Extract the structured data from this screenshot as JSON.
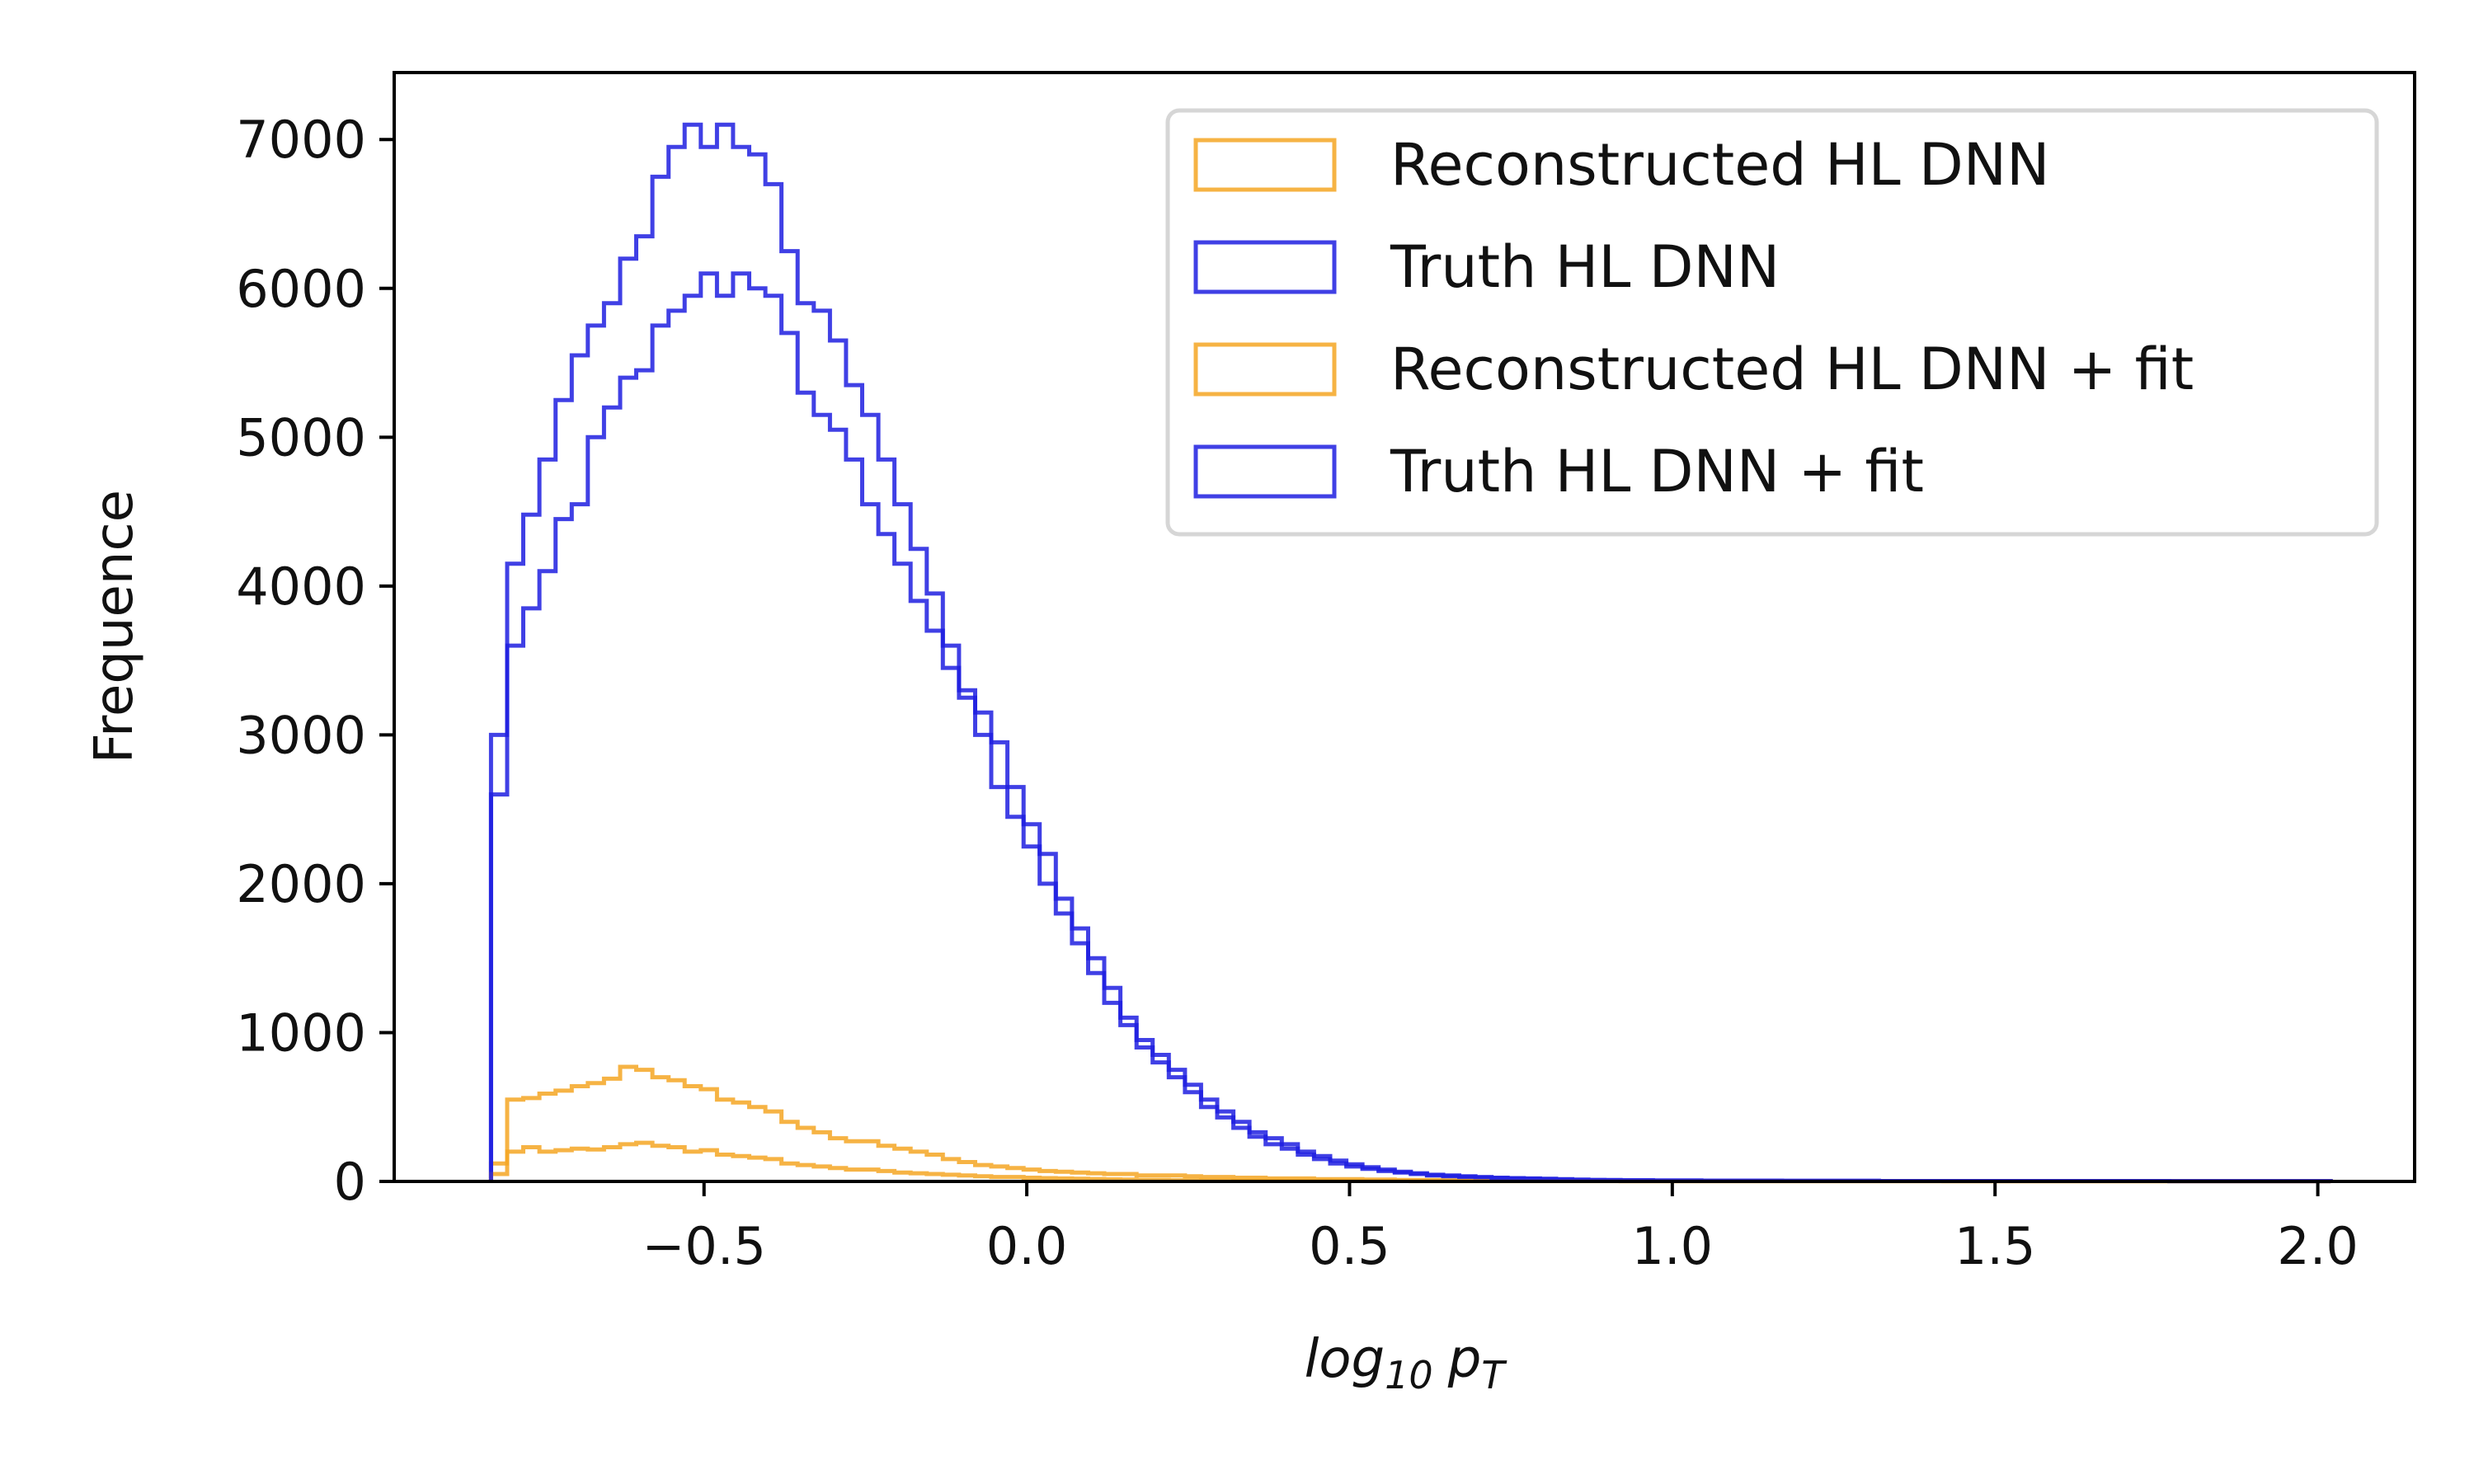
{
  "chart_data": {
    "type": "histogram-step",
    "xlabel": {
      "base": "log",
      "sub": "10",
      "var": "p",
      "var_sub": "T"
    },
    "ylabel": "Frequence",
    "xlim": [
      -0.98,
      2.15
    ],
    "ylim": [
      0,
      7450
    ],
    "x_ticks": [
      -0.5,
      0.0,
      0.5,
      1.0,
      1.5,
      2.0
    ],
    "x_tick_labels": [
      "−0.5",
      "0.0",
      "0.5",
      "1.0",
      "1.5",
      "2.0"
    ],
    "y_ticks": [
      0,
      1000,
      2000,
      3000,
      4000,
      5000,
      6000,
      7000
    ],
    "y_tick_labels": [
      "0",
      "1000",
      "2000",
      "3000",
      "4000",
      "5000",
      "6000",
      "7000"
    ],
    "grid": false,
    "legend_position": "top-right",
    "bin_start": -0.83,
    "bin_width": 0.025,
    "series": [
      {
        "name": "Reconstructed HL DNN",
        "color": "#f5a623",
        "values": [
          120,
          550,
          560,
          590,
          610,
          640,
          660,
          690,
          770,
          750,
          700,
          680,
          640,
          620,
          550,
          530,
          500,
          470,
          400,
          360,
          330,
          290,
          270,
          270,
          240,
          220,
          200,
          180,
          150,
          130,
          110,
          100,
          90,
          80,
          70,
          65,
          60,
          55,
          50,
          50,
          40,
          40,
          40,
          35,
          30,
          30,
          25,
          25,
          20,
          20,
          20,
          15,
          15,
          15,
          12,
          12,
          10,
          10,
          10,
          8,
          8,
          8,
          5,
          5,
          5,
          5,
          5,
          5,
          5,
          5,
          3,
          3,
          3,
          3,
          3,
          3,
          3,
          3,
          3,
          3,
          3,
          3,
          3,
          3,
          3,
          3,
          3,
          3,
          3,
          3,
          2,
          2,
          2,
          2,
          2,
          2,
          2,
          2,
          2,
          2,
          2,
          2,
          2,
          2,
          2,
          2,
          2,
          2,
          2,
          2,
          2,
          2,
          2,
          2
        ]
      },
      {
        "name": "Truth HL DNN",
        "color": "#1f1fe0",
        "values": [
          3000,
          4150,
          4480,
          4850,
          5250,
          5550,
          5750,
          5900,
          6200,
          6350,
          6750,
          6950,
          7100,
          6950,
          7100,
          6950,
          6900,
          6700,
          6250,
          5900,
          5850,
          5650,
          5350,
          5150,
          4850,
          4550,
          4250,
          3950,
          3600,
          3300,
          3000,
          2650,
          2450,
          2250,
          2000,
          1800,
          1600,
          1400,
          1200,
          1050,
          900,
          800,
          700,
          600,
          500,
          430,
          360,
          300,
          250,
          220,
          180,
          150,
          120,
          100,
          85,
          70,
          60,
          50,
          40,
          35,
          30,
          25,
          22,
          20,
          18,
          15,
          12,
          10,
          10,
          8,
          8,
          8,
          6,
          6,
          6,
          5,
          5,
          5,
          5,
          5,
          4,
          4,
          4,
          4,
          4,
          4,
          3,
          3,
          3,
          3,
          3,
          3,
          3,
          3,
          3,
          3,
          3,
          3,
          3,
          3,
          3,
          3,
          3,
          3,
          2,
          2,
          2,
          2,
          2,
          2,
          2,
          2,
          2,
          2
        ]
      },
      {
        "name": "Reconstructed HL DNN + fit",
        "color": "#f5a623",
        "values": [
          50,
          200,
          230,
          200,
          210,
          220,
          215,
          230,
          250,
          260,
          240,
          230,
          200,
          210,
          180,
          170,
          160,
          150,
          120,
          110,
          100,
          90,
          80,
          80,
          70,
          60,
          55,
          50,
          45,
          40,
          35,
          30,
          30,
          25,
          22,
          20,
          18,
          16,
          14,
          12,
          10,
          10,
          8,
          8,
          6,
          6,
          5,
          5,
          5,
          4,
          4,
          4,
          3,
          3,
          3,
          3,
          3,
          2,
          2,
          2,
          2,
          2,
          2,
          2,
          2,
          2,
          2,
          2,
          2,
          2,
          1,
          1,
          1,
          1,
          1,
          1,
          1,
          1,
          1,
          1,
          1,
          1,
          1,
          1,
          1,
          1,
          1,
          1,
          1,
          1,
          1,
          1,
          1,
          1,
          1,
          1,
          1,
          1,
          1,
          1,
          1,
          1,
          1,
          1,
          1,
          1,
          1,
          1,
          1,
          1,
          1,
          1,
          1,
          1
        ]
      },
      {
        "name": "Truth HL DNN + fit",
        "color": "#1f1fe0",
        "values": [
          2600,
          3600,
          3850,
          4100,
          4450,
          4550,
          5000,
          5200,
          5400,
          5450,
          5750,
          5850,
          5950,
          6100,
          5950,
          6100,
          6000,
          5950,
          5700,
          5300,
          5150,
          5050,
          4850,
          4550,
          4350,
          4150,
          3900,
          3700,
          3450,
          3250,
          3150,
          2950,
          2650,
          2400,
          2200,
          1900,
          1700,
          1500,
          1300,
          1100,
          950,
          850,
          750,
          650,
          550,
          470,
          400,
          330,
          290,
          250,
          200,
          170,
          140,
          115,
          95,
          80,
          65,
          55,
          45,
          40,
          35,
          30,
          25,
          22,
          20,
          18,
          15,
          12,
          10,
          10,
          8,
          8,
          6,
          6,
          6,
          5,
          5,
          5,
          5,
          5,
          4,
          4,
          4,
          4,
          4,
          4,
          3,
          3,
          3,
          3,
          3,
          3,
          3,
          3,
          3,
          3,
          3,
          3,
          3,
          3,
          3,
          3,
          3,
          3,
          2,
          2,
          2,
          2,
          2,
          2,
          2,
          2,
          2,
          2
        ]
      }
    ]
  }
}
